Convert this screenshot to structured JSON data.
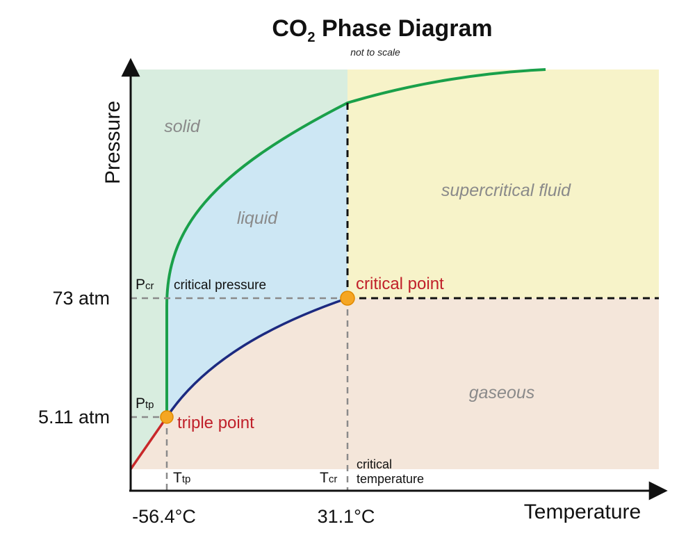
{
  "title": {
    "main": "CO",
    "sub": "2",
    "rest": " Phase Diagram",
    "note": "not to scale"
  },
  "axes": {
    "x_label": "Temperature",
    "y_label": "Pressure",
    "x_ticks": [
      "-56.4°C",
      "31.1°C"
    ],
    "y_ticks": [
      "73 atm",
      "5.11 atm"
    ]
  },
  "regions": {
    "solid": "solid",
    "liquid": "liquid",
    "supercritical": "supercritical fluid",
    "gaseous": "gaseous"
  },
  "points": {
    "triple": "triple point",
    "critical": "critical point"
  },
  "markers": {
    "p_cr": {
      "symbol": "P",
      "sub": "cr",
      "text": "critical pressure"
    },
    "p_tp": {
      "symbol": "P",
      "sub": "tp"
    },
    "t_tp": {
      "symbol": "T",
      "sub": "tp"
    },
    "t_cr": {
      "symbol": "T",
      "sub": "cr",
      "text_line1": "critical",
      "text_line2": "temperature"
    }
  },
  "colors": {
    "solid_region": "#d8eddf",
    "liquid_region": "#cde7f4",
    "supercritical_region": "#f7f3c9",
    "gaseous_region": "#f4e6da",
    "melting_curve": "#1aa04a",
    "boiling_curve": "#1c2a80",
    "sublimation_curve": "#c8282a",
    "point_fill": "#f5a623",
    "point_label": "#c0202a"
  }
}
